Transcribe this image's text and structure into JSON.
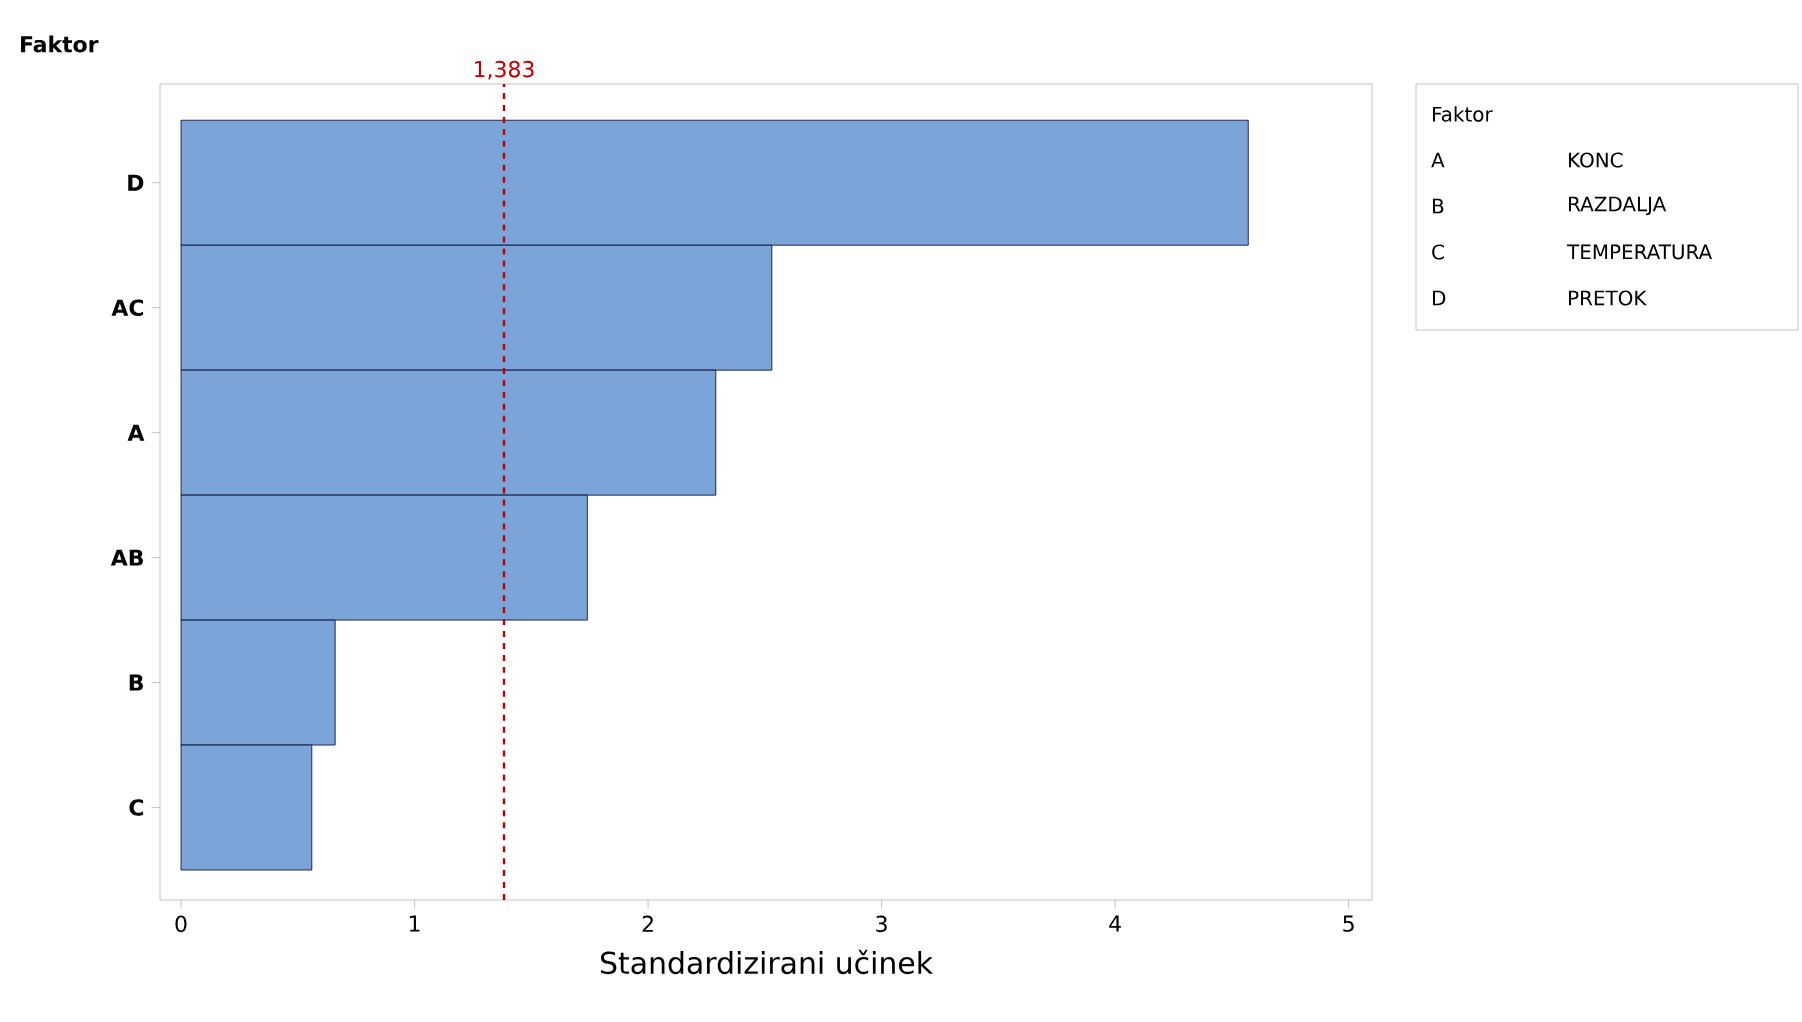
{
  "chart_data": {
    "type": "bar",
    "orientation": "horizontal",
    "ylabel": "Faktor",
    "xlabel": "Standardizirani učinek",
    "categories": [
      "D",
      "AC",
      "A",
      "AB",
      "B",
      "C"
    ],
    "values": [
      4.57,
      2.53,
      2.29,
      1.74,
      0.66,
      0.56
    ],
    "color": "#7ba4d8",
    "xlim": [
      -0.09,
      5.1
    ],
    "xticks": [
      0,
      1,
      2,
      3,
      4,
      5
    ],
    "ref_lines": [
      {
        "axis": "x",
        "value": 1.383,
        "label": "1,383",
        "color": "#c00000",
        "line_style": "dashed"
      }
    ],
    "annotations": [
      "Faktor",
      "A",
      "KONC",
      "B",
      "RAZDALJA",
      "C",
      "TEMPERATURA",
      "D",
      "PRETOK"
    ],
    "grid": false
  }
}
